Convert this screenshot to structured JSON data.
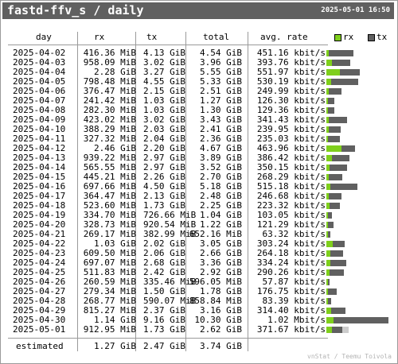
{
  "header": {
    "title": "fastd-ffv_s / daily",
    "timestamp": "2025-05-01 16:50"
  },
  "columns": {
    "day": "day",
    "rx": "rx",
    "tx": "tx",
    "total": "total",
    "avg": "avg. rate"
  },
  "legend": {
    "rx_label": "rx",
    "tx_label": "tx",
    "rx_color": "#7fcf1c",
    "tx_color": "#606060"
  },
  "rows": [
    {
      "day": "2025-04-02",
      "rx": "416.36 MiB",
      "tx": "4.13 GiB",
      "total": "4.54 GiB",
      "avg": "451.16 kbit/s",
      "rx_gib": 0.41,
      "tx_gib": 4.13
    },
    {
      "day": "2025-04-03",
      "rx": "958.09 MiB",
      "tx": "3.02 GiB",
      "total": "3.96 GiB",
      "avg": "393.76 kbit/s",
      "rx_gib": 0.94,
      "tx_gib": 3.02
    },
    {
      "day": "2025-04-04",
      "rx": "2.28 GiB",
      "tx": "3.27 GiB",
      "total": "5.55 GiB",
      "avg": "551.97 kbit/s",
      "rx_gib": 2.28,
      "tx_gib": 3.27
    },
    {
      "day": "2025-04-05",
      "rx": "798.48 MiB",
      "tx": "4.55 GiB",
      "total": "5.33 GiB",
      "avg": "530.19 kbit/s",
      "rx_gib": 0.78,
      "tx_gib": 4.55
    },
    {
      "day": "2025-04-06",
      "rx": "376.47 MiB",
      "tx": "2.15 GiB",
      "total": "2.51 GiB",
      "avg": "249.99 kbit/s",
      "rx_gib": 0.37,
      "tx_gib": 2.15
    },
    {
      "day": "2025-04-07",
      "rx": "241.42 MiB",
      "tx": "1.03 GiB",
      "total": "1.27 GiB",
      "avg": "126.30 kbit/s",
      "rx_gib": 0.24,
      "tx_gib": 1.03
    },
    {
      "day": "2025-04-08",
      "rx": "282.30 MiB",
      "tx": "1.03 GiB",
      "total": "1.30 GiB",
      "avg": "129.36 kbit/s",
      "rx_gib": 0.28,
      "tx_gib": 1.03
    },
    {
      "day": "2025-04-09",
      "rx": "423.02 MiB",
      "tx": "3.02 GiB",
      "total": "3.43 GiB",
      "avg": "341.43 kbit/s",
      "rx_gib": 0.41,
      "tx_gib": 3.02
    },
    {
      "day": "2025-04-10",
      "rx": "388.29 MiB",
      "tx": "2.03 GiB",
      "total": "2.41 GiB",
      "avg": "239.95 kbit/s",
      "rx_gib": 0.38,
      "tx_gib": 2.03
    },
    {
      "day": "2025-04-11",
      "rx": "327.32 MiB",
      "tx": "2.04 GiB",
      "total": "2.36 GiB",
      "avg": "235.03 kbit/s",
      "rx_gib": 0.32,
      "tx_gib": 2.04
    },
    {
      "day": "2025-04-12",
      "rx": "2.46 GiB",
      "tx": "2.20 GiB",
      "total": "4.67 GiB",
      "avg": "463.96 kbit/s",
      "rx_gib": 2.46,
      "tx_gib": 2.2
    },
    {
      "day": "2025-04-13",
      "rx": "939.22 MiB",
      "tx": "2.97 GiB",
      "total": "3.89 GiB",
      "avg": "386.42 kbit/s",
      "rx_gib": 0.92,
      "tx_gib": 2.97
    },
    {
      "day": "2025-04-14",
      "rx": "565.55 MiB",
      "tx": "2.97 GiB",
      "total": "3.52 GiB",
      "avg": "350.15 kbit/s",
      "rx_gib": 0.55,
      "tx_gib": 2.97
    },
    {
      "day": "2025-04-15",
      "rx": "445.21 MiB",
      "tx": "2.26 GiB",
      "total": "2.70 GiB",
      "avg": "268.29 kbit/s",
      "rx_gib": 0.43,
      "tx_gib": 2.26
    },
    {
      "day": "2025-04-16",
      "rx": "697.66 MiB",
      "tx": "4.50 GiB",
      "total": "5.18 GiB",
      "avg": "515.18 kbit/s",
      "rx_gib": 0.68,
      "tx_gib": 4.5
    },
    {
      "day": "2025-04-17",
      "rx": "364.47 MiB",
      "tx": "2.13 GiB",
      "total": "2.48 GiB",
      "avg": "246.68 kbit/s",
      "rx_gib": 0.36,
      "tx_gib": 2.13
    },
    {
      "day": "2025-04-18",
      "rx": "523.60 MiB",
      "tx": "1.73 GiB",
      "total": "2.25 GiB",
      "avg": "223.32 kbit/s",
      "rx_gib": 0.51,
      "tx_gib": 1.73
    },
    {
      "day": "2025-04-19",
      "rx": "334.70 MiB",
      "tx": "726.66 MiB",
      "total": "1.04 GiB",
      "avg": "103.05 kbit/s",
      "rx_gib": 0.33,
      "tx_gib": 0.71
    },
    {
      "day": "2025-04-20",
      "rx": "328.73 MiB",
      "tx": "920.54 MiB",
      "total": "1.22 GiB",
      "avg": "121.29 kbit/s",
      "rx_gib": 0.32,
      "tx_gib": 0.9
    },
    {
      "day": "2025-04-21",
      "rx": "269.17 MiB",
      "tx": "382.99 MiB",
      "total": "652.16 MiB",
      "avg": "63.32 kbit/s",
      "rx_gib": 0.26,
      "tx_gib": 0.37
    },
    {
      "day": "2025-04-22",
      "rx": "1.03 GiB",
      "tx": "2.02 GiB",
      "total": "3.05 GiB",
      "avg": "303.24 kbit/s",
      "rx_gib": 1.03,
      "tx_gib": 2.02
    },
    {
      "day": "2025-04-23",
      "rx": "609.50 MiB",
      "tx": "2.06 GiB",
      "total": "2.66 GiB",
      "avg": "264.18 kbit/s",
      "rx_gib": 0.6,
      "tx_gib": 2.06
    },
    {
      "day": "2025-04-24",
      "rx": "697.07 MiB",
      "tx": "2.68 GiB",
      "total": "3.36 GiB",
      "avg": "334.24 kbit/s",
      "rx_gib": 0.68,
      "tx_gib": 2.68
    },
    {
      "day": "2025-04-25",
      "rx": "511.83 MiB",
      "tx": "2.42 GiB",
      "total": "2.92 GiB",
      "avg": "290.26 kbit/s",
      "rx_gib": 0.5,
      "tx_gib": 2.42
    },
    {
      "day": "2025-04-26",
      "rx": "260.59 MiB",
      "tx": "335.46 MiB",
      "total": "596.05 MiB",
      "avg": "57.87 kbit/s",
      "rx_gib": 0.25,
      "tx_gib": 0.33
    },
    {
      "day": "2025-04-27",
      "rx": "279.34 MiB",
      "tx": "1.50 GiB",
      "total": "1.78 GiB",
      "avg": "176.75 kbit/s",
      "rx_gib": 0.27,
      "tx_gib": 1.5
    },
    {
      "day": "2025-04-28",
      "rx": "268.77 MiB",
      "tx": "590.07 MiB",
      "total": "858.84 MiB",
      "avg": "83.39 kbit/s",
      "rx_gib": 0.26,
      "tx_gib": 0.58
    },
    {
      "day": "2025-04-29",
      "rx": "815.27 MiB",
      "tx": "2.37 GiB",
      "total": "3.16 GiB",
      "avg": "314.40 kbit/s",
      "rx_gib": 0.8,
      "tx_gib": 2.37
    },
    {
      "day": "2025-04-30",
      "rx": "1.14 GiB",
      "tx": "9.16 GiB",
      "total": "10.30 GiB",
      "avg": "1.02 Mbit/s",
      "rx_gib": 1.14,
      "tx_gib": 9.16
    },
    {
      "day": "2025-05-01",
      "rx": "912.95 MiB",
      "tx": "1.73 GiB",
      "total": "2.62 GiB",
      "avg": "371.67 kbit/s",
      "rx_gib": 0.89,
      "tx_gib": 1.73
    }
  ],
  "estimated": {
    "label": "estimated",
    "rx": "1.27 GiB",
    "tx": "2.47 GiB",
    "total": "3.74 GiB",
    "total_gib": 3.74,
    "est_color": "#cccccc"
  },
  "chart_scale_max_gib": 10.3,
  "footer": "vnStat / Teemu Toivola"
}
